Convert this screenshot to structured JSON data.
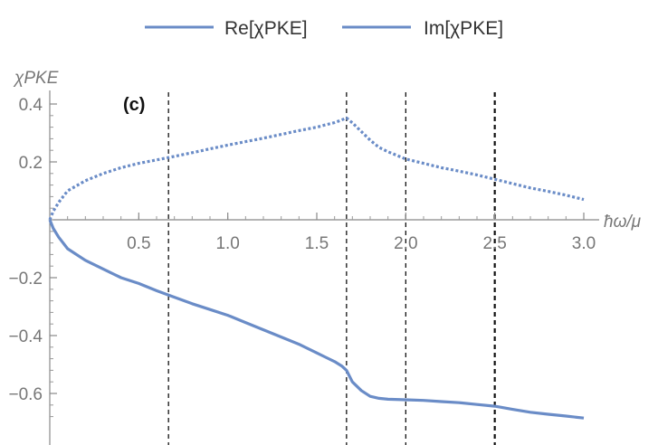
{
  "chart_data": {
    "type": "line",
    "panel_label": "(c)",
    "xlabel": "ħω/μ",
    "ylabel": "χPKE",
    "xlim": [
      0,
      3.0
    ],
    "ylim": [
      -0.7,
      0.42
    ],
    "x_ticks": [
      0.5,
      1.0,
      1.5,
      2.0,
      2.5,
      3.0
    ],
    "x_tick_labels": [
      "0.5",
      "1.0",
      "1.5",
      "2.0",
      "2.5",
      "3.0"
    ],
    "y_ticks": [
      0.4,
      0.2,
      -0.2,
      -0.4,
      -0.6
    ],
    "y_tick_labels": [
      "0.4",
      "0.2",
      "−0.2",
      "−0.4",
      "−0.6"
    ],
    "legend": [
      "Re[χPKE]",
      "Im[χPKE]"
    ],
    "legend_position": "top",
    "vertical_lines_x": [
      0.667,
      1.667,
      2.0,
      2.5
    ],
    "series": [
      {
        "name": "Re[χPKE]",
        "color": "#6a8cc7",
        "style": "solid",
        "x": [
          0,
          0.02,
          0.05,
          0.1,
          0.2,
          0.3,
          0.4,
          0.5,
          0.6,
          0.667,
          0.8,
          0.9,
          1.0,
          1.1,
          1.2,
          1.3,
          1.4,
          1.5,
          1.55,
          1.6,
          1.64,
          1.667,
          1.7,
          1.75,
          1.8,
          1.85,
          1.9,
          2.0,
          2.1,
          2.2,
          2.3,
          2.4,
          2.5,
          2.6,
          2.7,
          2.8,
          2.9,
          3.0
        ],
        "y": [
          0,
          -0.03,
          -0.06,
          -0.1,
          -0.14,
          -0.17,
          -0.2,
          -0.22,
          -0.245,
          -0.26,
          -0.29,
          -0.31,
          -0.33,
          -0.355,
          -0.38,
          -0.405,
          -0.43,
          -0.46,
          -0.475,
          -0.49,
          -0.505,
          -0.52,
          -0.56,
          -0.59,
          -0.61,
          -0.617,
          -0.62,
          -0.622,
          -0.624,
          -0.628,
          -0.632,
          -0.638,
          -0.644,
          -0.655,
          -0.665,
          -0.672,
          -0.678,
          -0.685
        ]
      },
      {
        "name": "Im[χPKE]",
        "color": "#6a8cc7",
        "style": "dotted",
        "x": [
          0,
          0.02,
          0.05,
          0.1,
          0.2,
          0.3,
          0.4,
          0.5,
          0.6,
          0.667,
          0.8,
          0.9,
          1.0,
          1.1,
          1.2,
          1.3,
          1.4,
          1.5,
          1.55,
          1.6,
          1.64,
          1.667,
          1.7,
          1.75,
          1.8,
          1.85,
          1.9,
          2.0,
          2.1,
          2.2,
          2.3,
          2.4,
          2.5,
          2.6,
          2.7,
          2.8,
          2.9,
          3.0
        ],
        "y": [
          0,
          0.03,
          0.06,
          0.1,
          0.135,
          0.16,
          0.18,
          0.195,
          0.207,
          0.215,
          0.232,
          0.245,
          0.258,
          0.27,
          0.282,
          0.295,
          0.308,
          0.32,
          0.328,
          0.336,
          0.345,
          0.352,
          0.335,
          0.305,
          0.275,
          0.25,
          0.235,
          0.21,
          0.195,
          0.18,
          0.168,
          0.155,
          0.14,
          0.125,
          0.11,
          0.098,
          0.085,
          0.07
        ]
      }
    ]
  }
}
